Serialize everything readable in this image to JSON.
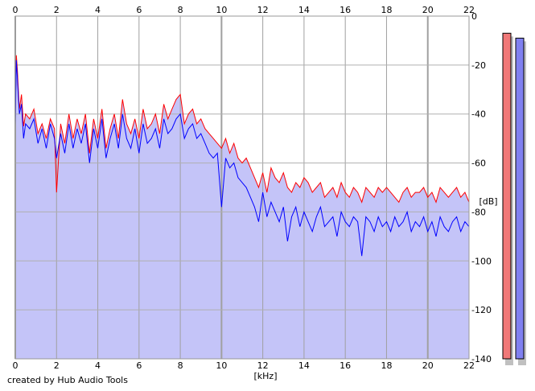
{
  "chart_data": {
    "type": "area",
    "xlabel": "[kHz]",
    "ylabel": "[dB]",
    "xlim": [
      0,
      22
    ],
    "ylim": [
      -140,
      0
    ],
    "x_ticks": [
      0,
      2,
      4,
      6,
      8,
      10,
      12,
      14,
      16,
      18,
      20,
      22
    ],
    "y_ticks": [
      0,
      -20,
      -40,
      -60,
      -80,
      -100,
      -120,
      -140
    ],
    "grid": true,
    "series": [
      {
        "color": "#ff0000",
        "x": [
          0.0,
          0.05,
          0.1,
          0.15,
          0.2,
          0.3,
          0.4,
          0.5,
          0.7,
          0.9,
          1.1,
          1.3,
          1.5,
          1.7,
          1.9,
          2.0,
          2.2,
          2.4,
          2.6,
          2.8,
          3.0,
          3.2,
          3.4,
          3.6,
          3.8,
          4.0,
          4.2,
          4.4,
          4.6,
          4.8,
          5.0,
          5.2,
          5.4,
          5.6,
          5.8,
          6.0,
          6.2,
          6.4,
          6.6,
          6.8,
          7.0,
          7.2,
          7.4,
          7.6,
          7.8,
          8.0,
          8.2,
          8.4,
          8.6,
          8.8,
          9.0,
          9.2,
          9.4,
          9.6,
          9.8,
          10.0,
          10.2,
          10.4,
          10.6,
          10.8,
          11.0,
          11.2,
          11.4,
          11.6,
          11.8,
          12.0,
          12.2,
          12.4,
          12.6,
          12.8,
          13.0,
          13.2,
          13.4,
          13.6,
          13.8,
          14.0,
          14.2,
          14.4,
          14.6,
          14.8,
          15.0,
          15.2,
          15.4,
          15.6,
          15.8,
          16.0,
          16.2,
          16.4,
          16.6,
          16.8,
          17.0,
          17.2,
          17.4,
          17.6,
          17.8,
          18.0,
          18.2,
          18.4,
          18.6,
          18.8,
          19.0,
          19.2,
          19.4,
          19.6,
          19.8,
          20.0,
          20.2,
          20.4,
          20.6,
          20.8,
          21.0,
          21.2,
          21.4,
          21.6,
          21.8,
          22.0
        ],
        "y": [
          -40,
          -16,
          -22,
          -30,
          -38,
          -32,
          -45,
          -40,
          -42,
          -38,
          -48,
          -44,
          -50,
          -42,
          -46,
          -72,
          -44,
          -52,
          -40,
          -50,
          -42,
          -48,
          -40,
          -56,
          -42,
          -50,
          -38,
          -54,
          -46,
          -40,
          -50,
          -34,
          -44,
          -48,
          -42,
          -50,
          -38,
          -46,
          -44,
          -40,
          -48,
          -36,
          -42,
          -38,
          -34,
          -32,
          -44,
          -40,
          -38,
          -44,
          -42,
          -46,
          -48,
          -50,
          -52,
          -54,
          -50,
          -56,
          -52,
          -58,
          -60,
          -58,
          -62,
          -66,
          -70,
          -64,
          -72,
          -62,
          -66,
          -68,
          -64,
          -70,
          -72,
          -68,
          -70,
          -66,
          -68,
          -72,
          -70,
          -68,
          -74,
          -72,
          -70,
          -74,
          -68,
          -72,
          -74,
          -70,
          -72,
          -76,
          -70,
          -72,
          -74,
          -70,
          -72,
          -70,
          -72,
          -74,
          -76,
          -72,
          -70,
          -74,
          -72,
          -72,
          -70,
          -74,
          -72,
          -76,
          -70,
          -72,
          -74,
          -72,
          -70,
          -74,
          -72,
          -76
        ],
        "meter_level": -7
      },
      {
        "color": "#0000ff",
        "x": [
          0.0,
          0.05,
          0.1,
          0.15,
          0.2,
          0.3,
          0.4,
          0.5,
          0.7,
          0.9,
          1.1,
          1.3,
          1.5,
          1.7,
          1.9,
          2.0,
          2.2,
          2.4,
          2.6,
          2.8,
          3.0,
          3.2,
          3.4,
          3.6,
          3.8,
          4.0,
          4.2,
          4.4,
          4.6,
          4.8,
          5.0,
          5.2,
          5.4,
          5.6,
          5.8,
          6.0,
          6.2,
          6.4,
          6.6,
          6.8,
          7.0,
          7.2,
          7.4,
          7.6,
          7.8,
          8.0,
          8.2,
          8.4,
          8.6,
          8.8,
          9.0,
          9.2,
          9.4,
          9.6,
          9.8,
          10.0,
          10.2,
          10.4,
          10.6,
          10.8,
          11.0,
          11.2,
          11.4,
          11.6,
          11.8,
          12.0,
          12.2,
          12.4,
          12.6,
          12.8,
          13.0,
          13.2,
          13.4,
          13.6,
          13.8,
          14.0,
          14.2,
          14.4,
          14.6,
          14.8,
          15.0,
          15.2,
          15.4,
          15.6,
          15.8,
          16.0,
          16.2,
          16.4,
          16.6,
          16.8,
          17.0,
          17.2,
          17.4,
          17.6,
          17.8,
          18.0,
          18.2,
          18.4,
          18.6,
          18.8,
          19.0,
          19.2,
          19.4,
          19.6,
          19.8,
          20.0,
          20.2,
          20.4,
          20.6,
          20.8,
          21.0,
          21.2,
          21.4,
          21.6,
          21.8,
          22.0
        ],
        "y": [
          -45,
          -18,
          -25,
          -33,
          -40,
          -36,
          -50,
          -44,
          -46,
          -42,
          -52,
          -46,
          -54,
          -44,
          -50,
          -58,
          -48,
          -56,
          -44,
          -54,
          -46,
          -52,
          -44,
          -60,
          -46,
          -54,
          -42,
          -58,
          -50,
          -44,
          -54,
          -40,
          -50,
          -54,
          -46,
          -56,
          -44,
          -52,
          -50,
          -46,
          -54,
          -42,
          -48,
          -46,
          -42,
          -40,
          -50,
          -46,
          -44,
          -50,
          -48,
          -52,
          -56,
          -58,
          -56,
          -78,
          -58,
          -62,
          -60,
          -66,
          -68,
          -70,
          -74,
          -78,
          -84,
          -72,
          -82,
          -76,
          -80,
          -84,
          -78,
          -92,
          -82,
          -78,
          -86,
          -80,
          -84,
          -88,
          -82,
          -78,
          -86,
          -84,
          -82,
          -90,
          -80,
          -84,
          -86,
          -82,
          -84,
          -98,
          -82,
          -84,
          -88,
          -82,
          -86,
          -84,
          -88,
          -82,
          -86,
          -84,
          -80,
          -88,
          -84,
          -86,
          -82,
          -88,
          -84,
          -90,
          -82,
          -86,
          -88,
          -84,
          -82,
          -88,
          -84,
          -86
        ],
        "meter_level": -9
      }
    ],
    "fill_color": "#c4c4f8",
    "credit": "created by Hub Audio Tools"
  }
}
